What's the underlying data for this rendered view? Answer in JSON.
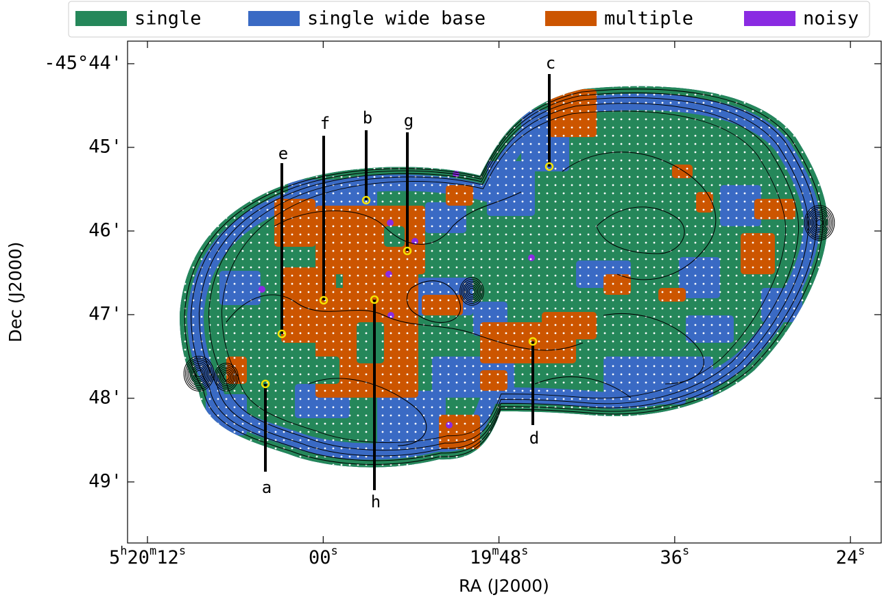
{
  "chart_data": {
    "type": "map",
    "xlabel": "RA (J2000)",
    "ylabel": "Dec (J2000)",
    "series": [
      {
        "name": "single",
        "color": "#25875a"
      },
      {
        "name": "single wide base",
        "color": "#3a6ac4"
      },
      {
        "name": "multiple",
        "color": "#cc5500"
      },
      {
        "name": "noisy",
        "color": "#8a2be2"
      }
    ],
    "xlim": [
      19213.36,
      19161.9
    ],
    "xticks": [
      {
        "value": 19212,
        "label": "5h20m12s"
      },
      {
        "value": 19200,
        "label": "00s"
      },
      {
        "value": 19188,
        "label": "19m48s"
      },
      {
        "value": 19176,
        "label": "36s"
      },
      {
        "value": 19164,
        "label": "24s"
      }
    ],
    "ylim": [
      -2749.73,
      -2743.73
    ],
    "yticks": [
      {
        "value": -2744,
        "label": "-45°44'"
      },
      {
        "value": -2745,
        "label": "45'"
      },
      {
        "value": -2746,
        "label": "46'"
      },
      {
        "value": -2747,
        "label": "47'"
      },
      {
        "value": -2748,
        "label": "48'"
      },
      {
        "value": -2749,
        "label": "49'"
      }
    ],
    "annotations": [
      "a",
      "b",
      "c",
      "d",
      "e",
      "f",
      "g",
      "h"
    ]
  }
}
